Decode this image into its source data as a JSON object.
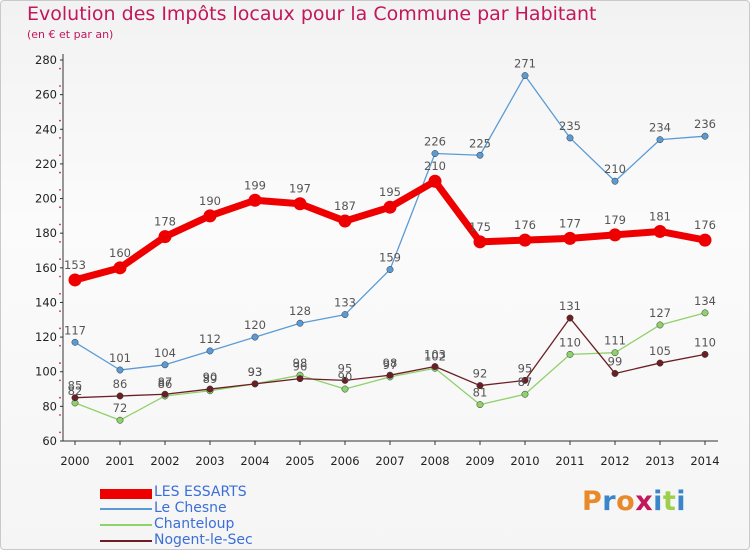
{
  "title": "Evolution des Impôts locaux pour la Commune par Habitant",
  "subtitle": "(en € et par an)",
  "logo": {
    "text": "Proxiti",
    "colors": [
      "#e8892a",
      "#3b86c8",
      "#e8892a",
      "#c2185b",
      "#3b86c8",
      "#9ccf4a",
      "#3b86c8"
    ]
  },
  "chart_data": {
    "type": "line",
    "x": [
      "2000",
      "2001",
      "2002",
      "2003",
      "2004",
      "2005",
      "2006",
      "2007",
      "2008",
      "2009",
      "2010",
      "2011",
      "2012",
      "2013",
      "2014"
    ],
    "ylim": [
      60,
      280
    ],
    "yticks": [
      "60",
      "80",
      "100",
      "120",
      "140",
      "160",
      "180",
      "200",
      "220",
      "240",
      "260",
      "280"
    ],
    "grid": false,
    "legend_position": "bottom-left",
    "series": [
      {
        "name": "Le Chesne",
        "color": "#5b9bd5",
        "values": [
          117,
          101,
          104,
          112,
          120,
          128,
          133,
          159,
          226,
          225,
          271,
          235,
          210,
          234,
          236
        ],
        "labels": [
          "117",
          "101",
          "104",
          "112",
          "120",
          "128",
          "133",
          "159",
          "226",
          "225",
          "271",
          "235",
          "210",
          "234",
          "236"
        ]
      },
      {
        "name": "Chanteloup",
        "color": "#8fd16a",
        "values": [
          82,
          72,
          86,
          89,
          93,
          98,
          90,
          97,
          102,
          81,
          87,
          110,
          111,
          127,
          134
        ],
        "labels": [
          "82",
          "72",
          "86",
          "89",
          "93",
          "98",
          "90",
          "97",
          "102",
          "81",
          "87",
          "110",
          "111",
          "127",
          "134"
        ]
      },
      {
        "name": "Nogent-le-Sec",
        "color": "#6b1f24",
        "values": [
          85,
          86,
          87,
          90,
          93,
          96,
          95,
          98,
          103,
          92,
          95,
          131,
          99,
          105,
          110
        ],
        "labels": [
          "85",
          "86",
          "87",
          "90",
          "93",
          "96",
          "95",
          "98",
          "103",
          "92",
          "95",
          "131",
          "99",
          "105",
          "110"
        ]
      },
      {
        "name": "LES ESSARTS",
        "color": "#ee0000",
        "values": [
          153,
          160,
          178,
          190,
          199,
          197,
          187,
          195,
          210,
          175,
          176,
          177,
          179,
          181,
          176
        ],
        "labels": [
          "153",
          "160",
          "178",
          "190",
          "199",
          "197",
          "187",
          "195",
          "210",
          "175",
          "176",
          "177",
          "179",
          "181",
          "176"
        ]
      }
    ],
    "legend": [
      {
        "name": "LES ESSARTS",
        "color": "#ee0000",
        "text_color": "#3b6fd8"
      },
      {
        "name": "Le Chesne",
        "color": "#5b9bd5",
        "text_color": "#3b6fd8"
      },
      {
        "name": "Chanteloup",
        "color": "#8fd16a",
        "text_color": "#3b6fd8"
      },
      {
        "name": "Nogent-le-Sec",
        "color": "#6b1f24",
        "text_color": "#3b6fd8"
      }
    ]
  }
}
